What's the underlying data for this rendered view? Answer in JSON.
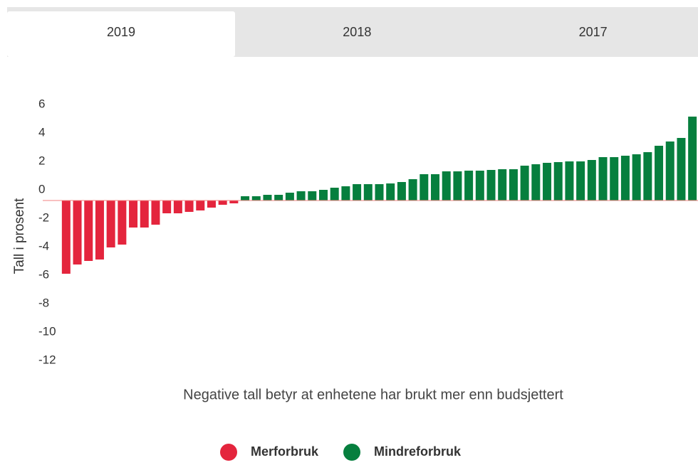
{
  "tabs": [
    "2019",
    "2018",
    "2017"
  ],
  "active_tab": 0,
  "chart_data": {
    "type": "bar",
    "y_label": "Tall i prosent",
    "x_label": "Negative tall betyr at enhetene har brukt mer enn budsjettert",
    "ylim": [
      -12,
      6
    ],
    "yticks": [
      6,
      4,
      2,
      0,
      -2,
      -4,
      -6,
      -8,
      -10,
      -12
    ],
    "series": [
      {
        "name": "Merforbruk",
        "color": "#e4253d",
        "values": [
          -5.15,
          -4.5,
          -4.25,
          -4.15,
          -3.3,
          -3.1,
          -1.9,
          -1.9,
          -1.7,
          -0.9,
          -0.9,
          -0.8,
          -0.7,
          -0.5,
          -0.3,
          -0.2,
          null,
          null,
          null,
          null,
          null,
          null,
          null,
          null,
          null,
          null,
          null,
          null,
          null,
          null,
          null,
          null,
          null,
          null,
          null,
          null,
          null,
          null,
          null,
          null,
          null,
          null,
          null,
          null,
          null,
          null,
          null,
          null,
          null,
          null,
          null,
          null,
          null,
          null,
          null,
          null,
          null
        ]
      },
      {
        "name": "Mindreforbruk",
        "color": "#067f3e",
        "values": [
          null,
          null,
          null,
          null,
          null,
          null,
          null,
          null,
          null,
          null,
          null,
          null,
          null,
          null,
          null,
          null,
          0.3,
          0.3,
          0.4,
          0.4,
          0.55,
          0.65,
          0.65,
          0.75,
          0.9,
          1.0,
          1.15,
          1.15,
          1.15,
          1.2,
          1.3,
          1.5,
          1.85,
          1.85,
          2.05,
          2.05,
          2.1,
          2.1,
          2.15,
          2.2,
          2.2,
          2.45,
          2.55,
          2.65,
          2.7,
          2.75,
          2.75,
          2.85,
          3.05,
          3.05,
          3.15,
          3.25,
          3.4,
          3.85,
          4.15,
          4.4,
          5.9
        ]
      }
    ]
  }
}
